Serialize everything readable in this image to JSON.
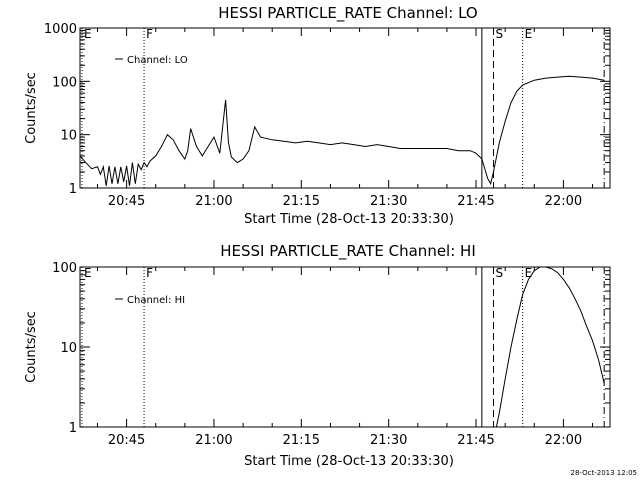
{
  "chart_data": [
    {
      "type": "line",
      "title": "HESSI PARTICLE_RATE Channel: LO",
      "ylabel": "Counts/sec",
      "xlabel": "Start Time (28-Oct-13 20:33:30)",
      "yscale": "log",
      "ylim": [
        1,
        1000
      ],
      "y_ticks": [
        "1",
        "10",
        "100",
        "1000"
      ],
      "xlim": [
        "20:37",
        "22:08"
      ],
      "x_ticks": [
        "20:45",
        "21:00",
        "21:15",
        "21:30",
        "21:45",
        "22:00"
      ],
      "legend": {
        "label": "Channel: LO",
        "placement": "top-left"
      },
      "grid": false,
      "markers": [
        {
          "label": "E",
          "time": "20:37",
          "style": "dotted"
        },
        {
          "label": "F",
          "time": "20:48",
          "style": "dotted"
        },
        {
          "label": "",
          "time": "21:46",
          "style": "solid"
        },
        {
          "label": "S",
          "time": "21:48",
          "style": "dashed"
        },
        {
          "label": "E",
          "time": "21:53",
          "style": "dotted"
        },
        {
          "label": "",
          "time": "22:07",
          "style": "dashdot"
        }
      ],
      "series": [
        {
          "name": "Channel: LO",
          "x": [
            "20:37",
            "20:38",
            "20:39",
            "20:40",
            "20:40.5",
            "20:41",
            "20:41.5",
            "20:42",
            "20:42.5",
            "20:43",
            "20:43.5",
            "20:44",
            "20:44.5",
            "20:45",
            "20:45.5",
            "20:46",
            "20:46.5",
            "20:47",
            "20:47.5",
            "20:48",
            "20:48.5",
            "20:49",
            "20:50",
            "20:51",
            "20:52",
            "20:53",
            "20:54",
            "20:55",
            "20:55.5",
            "20:56",
            "20:57",
            "20:58",
            "20:59",
            "21:00",
            "21:01",
            "21:02",
            "21:02.5",
            "21:03",
            "21:04",
            "21:05",
            "21:06",
            "21:07",
            "21:08",
            "21:10",
            "21:12",
            "21:14",
            "21:16",
            "21:18",
            "21:20",
            "21:22",
            "21:24",
            "21:26",
            "21:28",
            "21:30",
            "21:32",
            "21:34",
            "21:36",
            "21:38",
            "21:40",
            "21:42",
            "21:44",
            "21:45",
            "21:46",
            "21:47",
            "21:47.5",
            "21:48",
            "21:49",
            "21:50",
            "21:51",
            "21:52",
            "21:53",
            "21:55",
            "21:57",
            "21:59",
            "22:01",
            "22:03",
            "22:05",
            "22:07"
          ],
          "values": [
            4,
            3,
            2.3,
            2.5,
            1.8,
            2.5,
            1.1,
            2.6,
            1.2,
            2.5,
            1.2,
            2.5,
            1.3,
            2.6,
            1.1,
            3,
            1.2,
            2.8,
            2.2,
            3,
            2.5,
            3.2,
            4,
            6,
            10,
            8,
            5,
            3.5,
            5,
            13,
            6,
            4,
            6,
            9,
            4.5,
            45,
            7,
            3.8,
            3,
            3.5,
            5,
            14,
            9,
            8,
            7.5,
            7,
            7.5,
            7,
            6.5,
            7,
            6.5,
            6,
            6.5,
            6,
            5.5,
            5.5,
            5.5,
            5.5,
            5.5,
            5,
            5,
            4.5,
            3.5,
            1.5,
            1.2,
            2,
            7,
            18,
            40,
            65,
            85,
            105,
            115,
            120,
            125,
            120,
            115,
            105
          ]
        }
      ]
    },
    {
      "type": "line",
      "title": "HESSI PARTICLE_RATE Channel: HI",
      "ylabel": "Counts/sec",
      "xlabel": "Start Time (28-Oct-13 20:33:30)",
      "yscale": "log",
      "ylim": [
        1,
        100
      ],
      "y_ticks": [
        "1",
        "10",
        "100"
      ],
      "xlim": [
        "20:37",
        "22:08"
      ],
      "x_ticks": [
        "20:45",
        "21:00",
        "21:15",
        "21:30",
        "21:45",
        "22:00"
      ],
      "legend": {
        "label": "Channel: HI",
        "placement": "top-left"
      },
      "grid": false,
      "markers": [
        {
          "label": "E",
          "time": "20:37",
          "style": "dotted"
        },
        {
          "label": "F",
          "time": "20:48",
          "style": "dotted"
        },
        {
          "label": "",
          "time": "21:46",
          "style": "solid"
        },
        {
          "label": "S",
          "time": "21:48",
          "style": "dashed"
        },
        {
          "label": "E",
          "time": "21:53",
          "style": "dotted"
        },
        {
          "label": "",
          "time": "22:07",
          "style": "dashdot"
        }
      ],
      "series": [
        {
          "name": "Channel: HI",
          "x": [
            "21:48.5",
            "21:49",
            "21:50",
            "21:51",
            "21:52",
            "21:53",
            "21:54",
            "21:55",
            "21:56",
            "21:57",
            "21:58",
            "21:59",
            "22:00",
            "22:01",
            "22:02",
            "22:03",
            "22:04",
            "22:05",
            "22:06",
            "22:06.5",
            "22:07"
          ],
          "values": [
            1,
            1.5,
            4,
            10,
            22,
            45,
            70,
            90,
            100,
            100,
            95,
            85,
            70,
            55,
            40,
            28,
            18,
            12,
            7,
            5,
            3.5
          ]
        }
      ]
    }
  ],
  "stamp": "28-Oct-2013 12:05"
}
